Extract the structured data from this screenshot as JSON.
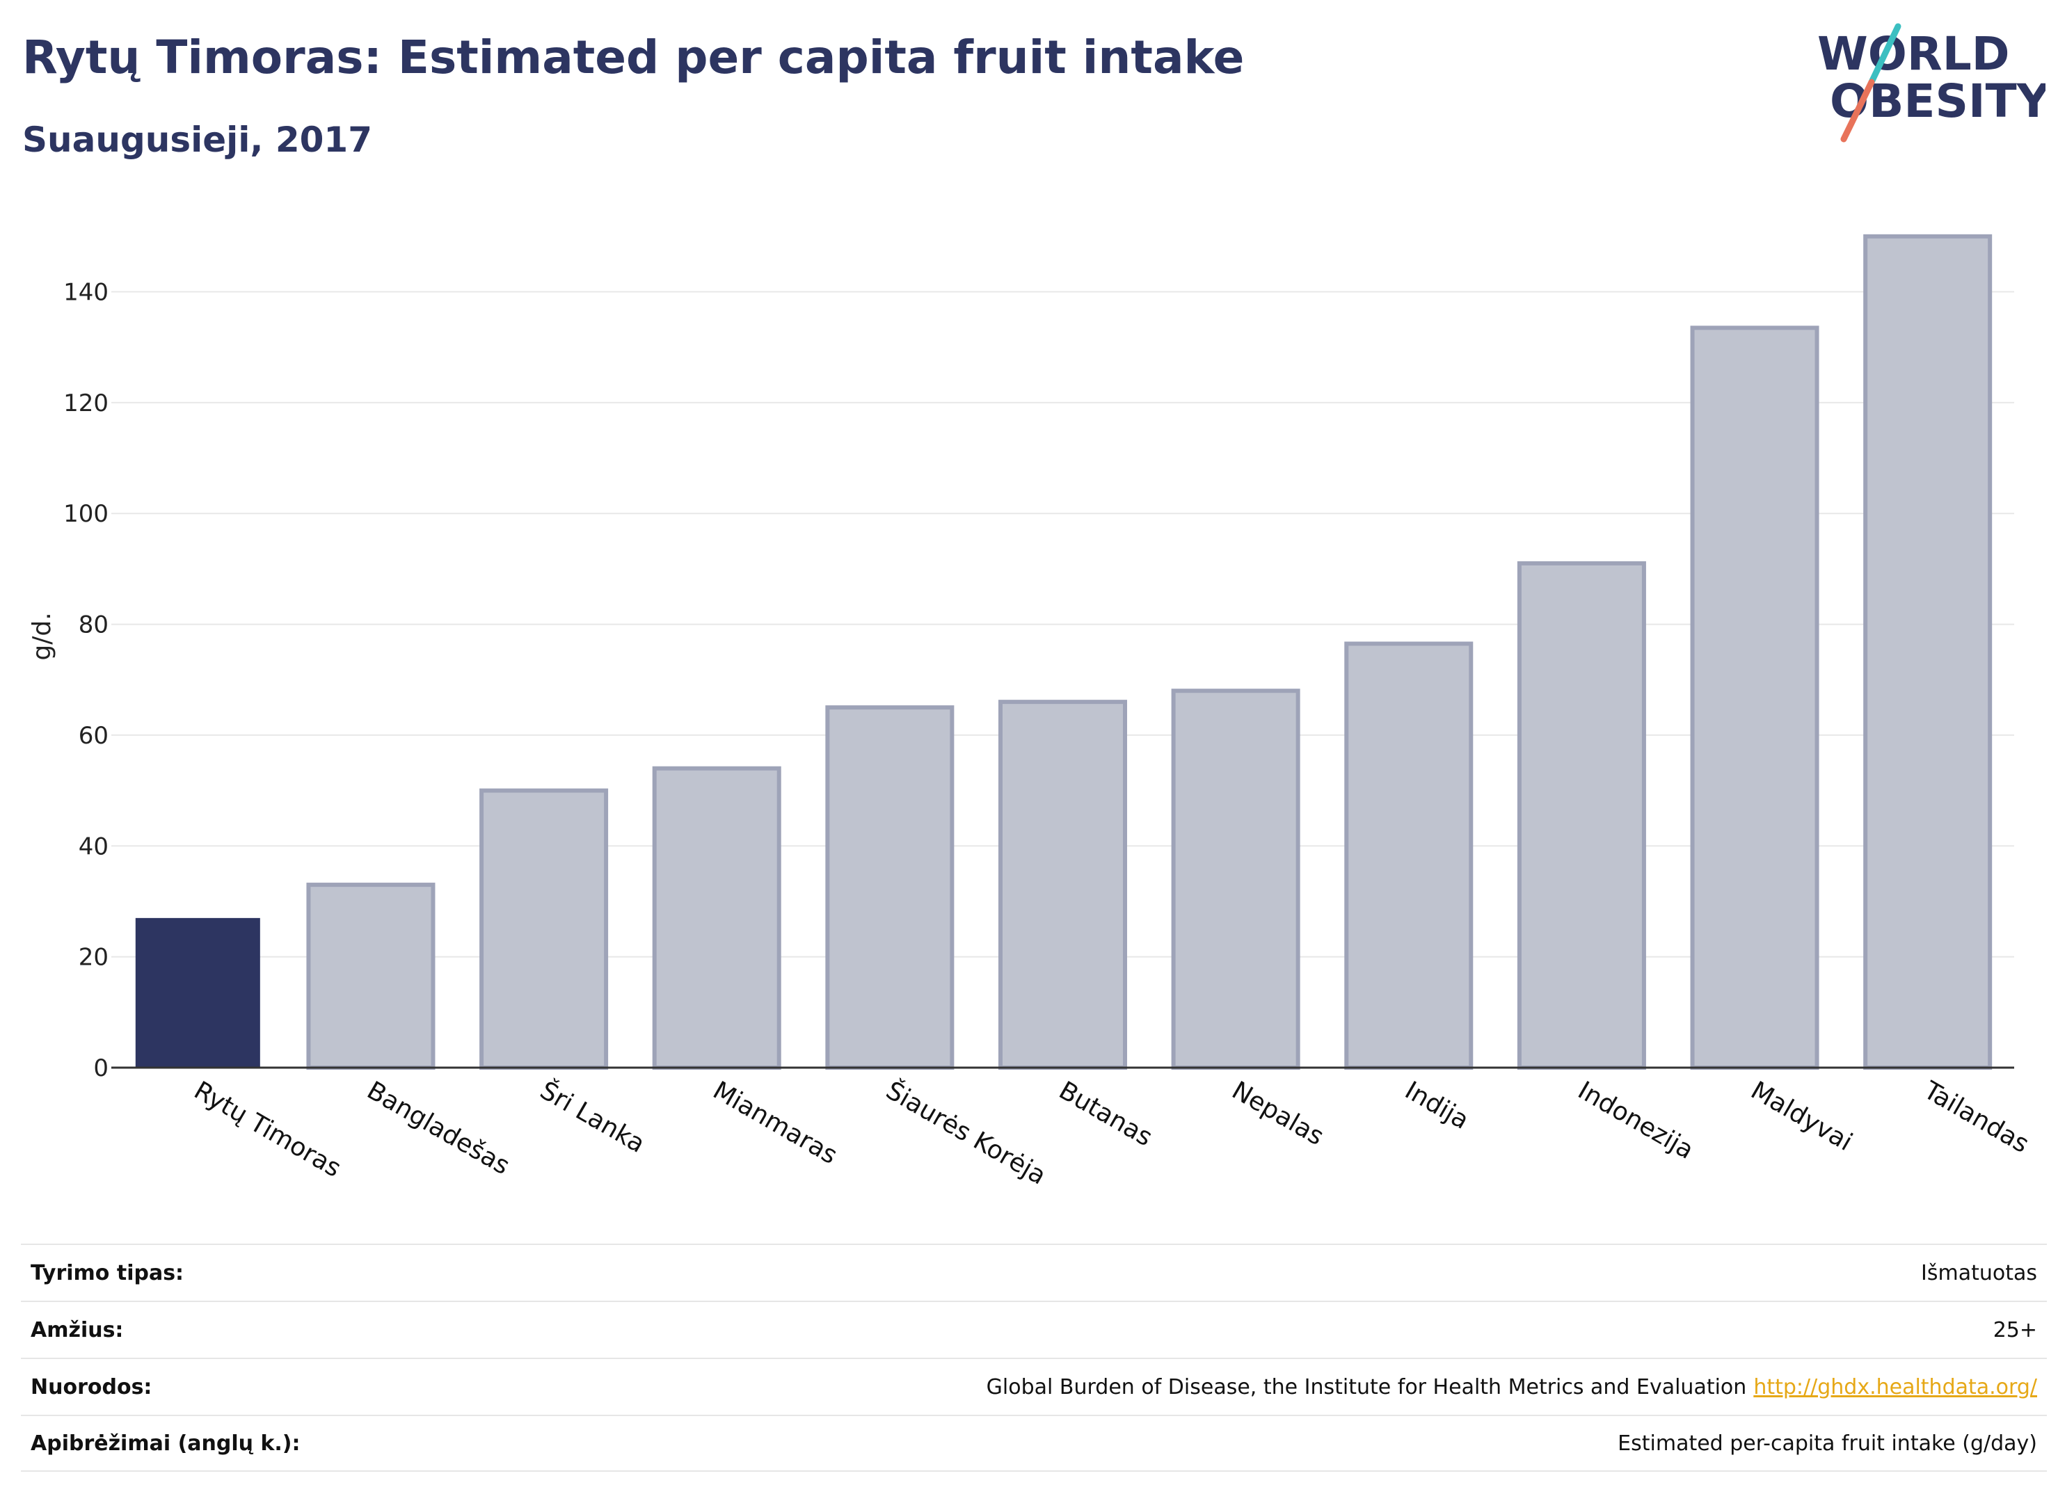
{
  "header": {
    "title": "Rytų Timoras: Estimated per capita fruit intake",
    "subtitle": "Suaugusieji, 2017"
  },
  "logo": {
    "line1": "WORLD",
    "line2": "OBESITY"
  },
  "colors": {
    "highlight": "#2d3561",
    "bar_fill": "#bfc3cf",
    "bar_stroke": "#9ea3b8",
    "logo_teal": "#3bbfc1",
    "logo_coral": "#e8735a",
    "link": "#e6a817"
  },
  "chart_data": {
    "type": "bar",
    "categories": [
      "Rytų Timoras",
      "Bangladešas",
      "Šri Lanka",
      "Mianmaras",
      "Šiaurės Korėja",
      "Butanas",
      "Nepalas",
      "Indija",
      "Indonezija",
      "Maldyvai",
      "Tailandas"
    ],
    "values": [
      27,
      33,
      50,
      54,
      65,
      66,
      68,
      76.5,
      91,
      133.5,
      150
    ],
    "highlight_index": 0,
    "ylabel": "g/d.",
    "ylim": [
      0,
      155
    ],
    "yticks": [
      0,
      20,
      40,
      60,
      80,
      100,
      120,
      140
    ],
    "grid": true
  },
  "meta": {
    "rows": [
      {
        "label": "Tyrimo tipas:",
        "value": "Išmatuotas"
      },
      {
        "label": "Amžius:",
        "value": "25+"
      },
      {
        "label": "Nuorodos:",
        "value": "Global Burden of Disease, the Institute for Health Metrics and Evaluation",
        "link": "http://ghdx.healthdata.org/"
      },
      {
        "label": "Apibrėžimai (anglų k.):",
        "value": "Estimated per-capita fruit intake (g/day)"
      }
    ]
  }
}
